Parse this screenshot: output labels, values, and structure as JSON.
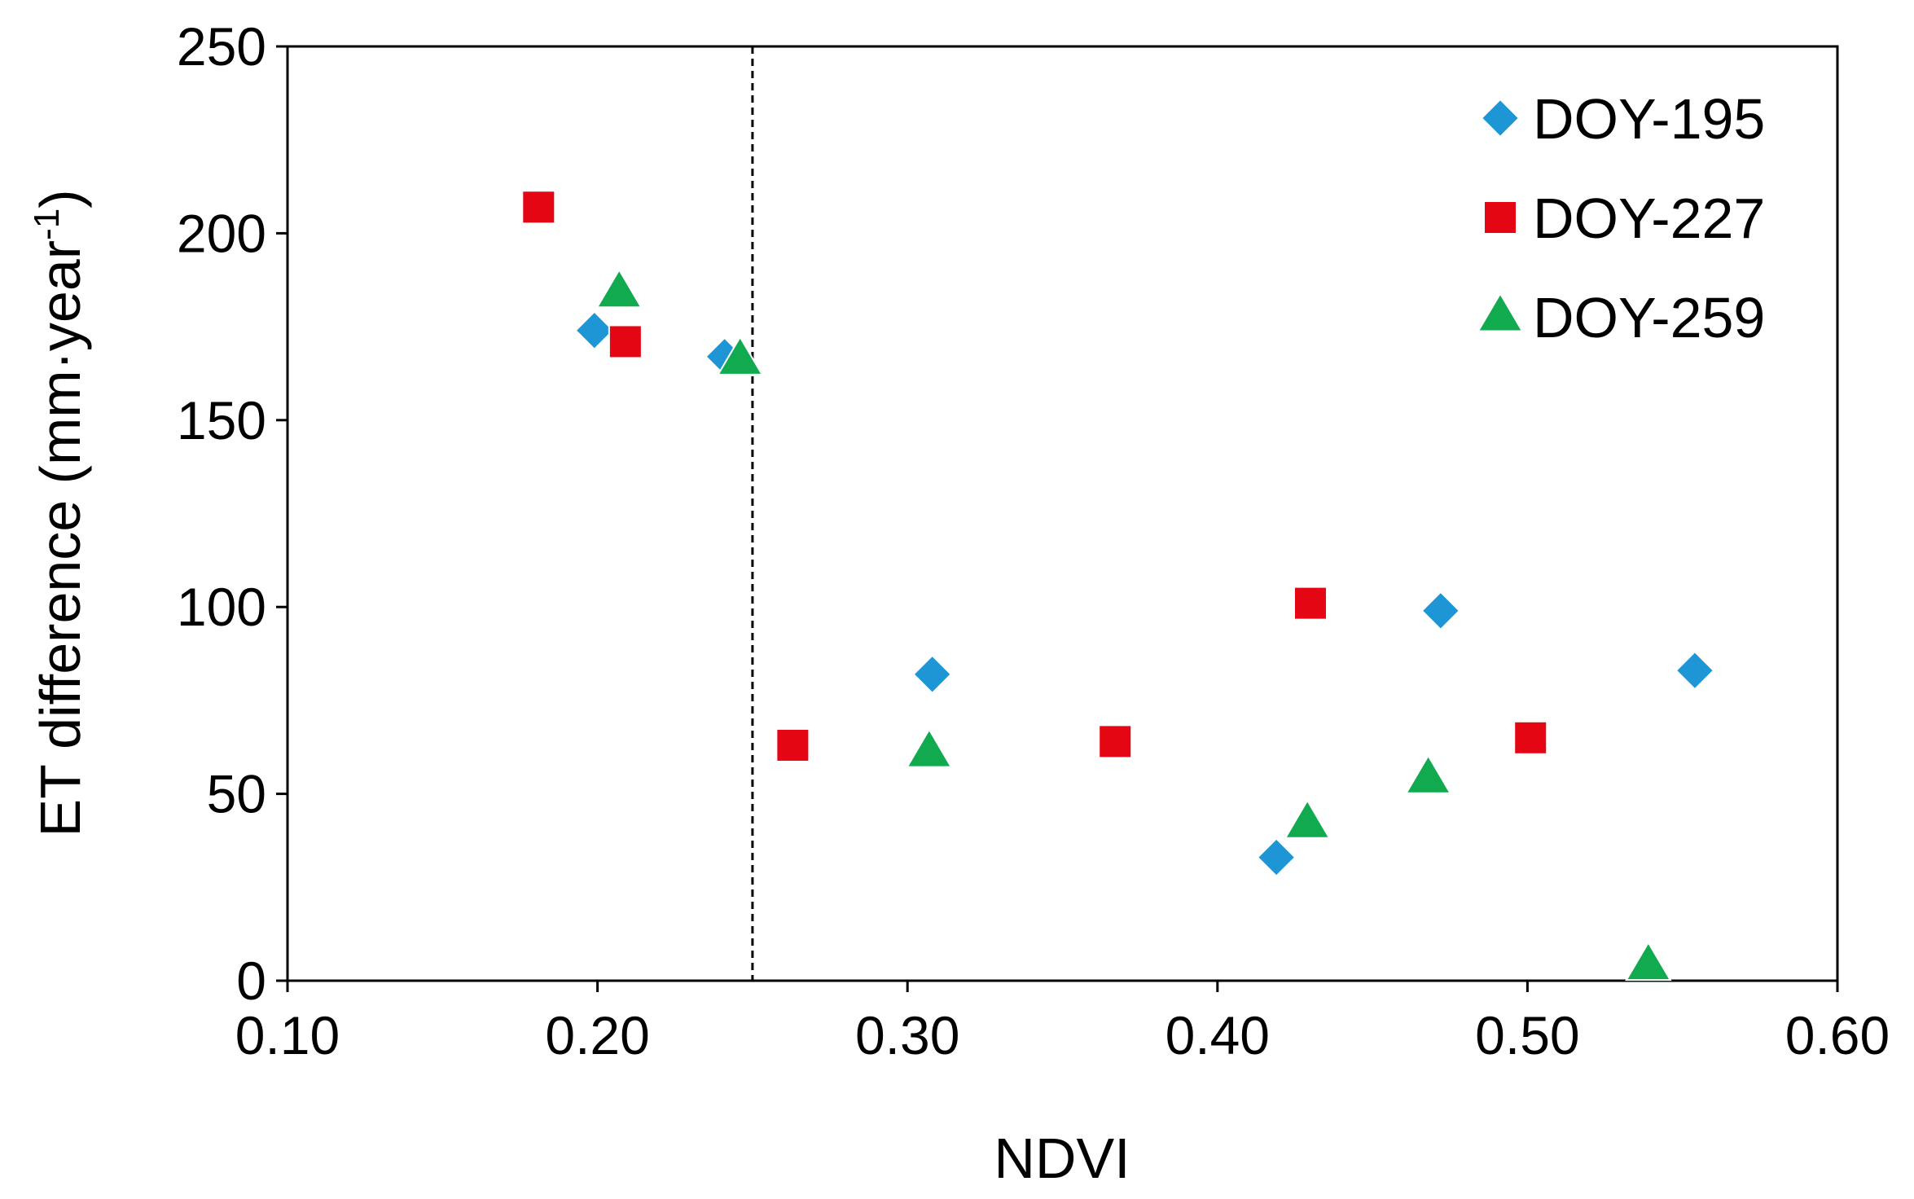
{
  "chart_data": {
    "type": "scatter",
    "title": "",
    "xlabel": "NDVI",
    "ylabel": {
      "main": "ET difference (mm·year",
      "superscript": "-1",
      "close": ")"
    },
    "xlim": [
      0.1,
      0.6
    ],
    "ylim": [
      0,
      250
    ],
    "x_ticks": [
      0.1,
      0.2,
      0.3,
      0.4,
      0.5,
      0.6
    ],
    "x_tick_labels": [
      "0.10",
      "0.20",
      "0.30",
      "0.40",
      "0.50",
      "0.60"
    ],
    "y_ticks": [
      0,
      50,
      100,
      150,
      200,
      250
    ],
    "y_tick_labels": [
      "0",
      "50",
      "100",
      "150",
      "200",
      "250"
    ],
    "threshold_line": {
      "x": 0.25,
      "style": "dashed"
    },
    "grid": false,
    "legend_position": "top-right",
    "series": [
      {
        "name": "DOY-195",
        "marker": "diamond",
        "color": "#1E96D6",
        "points": [
          [
            0.199,
            174
          ],
          [
            0.241,
            167
          ],
          [
            0.308,
            82
          ],
          [
            0.419,
            33
          ],
          [
            0.472,
            99
          ],
          [
            0.554,
            83
          ]
        ]
      },
      {
        "name": "DOY-227",
        "marker": "square",
        "color": "#E40613",
        "points": [
          [
            0.181,
            207
          ],
          [
            0.209,
            171
          ],
          [
            0.263,
            63
          ],
          [
            0.367,
            64
          ],
          [
            0.43,
            101
          ],
          [
            0.501,
            65
          ]
        ]
      },
      {
        "name": "DOY-259",
        "marker": "triangle",
        "color": "#11AA4F",
        "points": [
          [
            0.207,
            184
          ],
          [
            0.246,
            166
          ],
          [
            0.307,
            61
          ],
          [
            0.429,
            42
          ],
          [
            0.468,
            54
          ],
          [
            0.539,
            4
          ]
        ]
      }
    ]
  }
}
